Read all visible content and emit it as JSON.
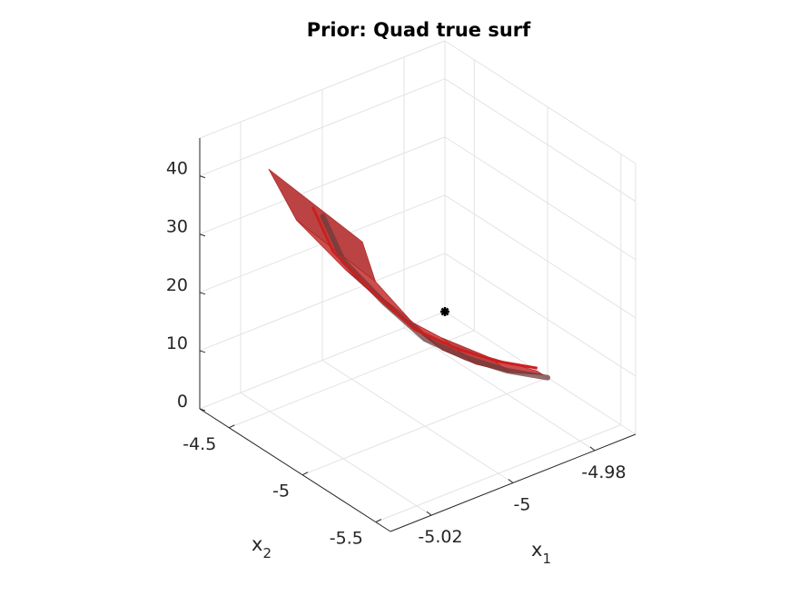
{
  "chart_data": {
    "type": "surface",
    "title": "Prior: Quad true surf",
    "xlabel": "x",
    "xlabel_sub": "1",
    "ylabel": "x",
    "ylabel_sub": "2",
    "zlabel": "",
    "x_ticks": [
      "-5.02",
      "-5",
      "-4.98"
    ],
    "y_ticks": [
      "-4.5",
      "-5",
      "-5.5"
    ],
    "z_ticks": [
      "0",
      "10",
      "20",
      "30",
      "40"
    ],
    "x_range": [
      -5.03,
      -4.97
    ],
    "y_range": [
      -5.6,
      -4.3
    ],
    "z_range": [
      0,
      45
    ],
    "grid": true,
    "view": "3d",
    "surface_color": "#cc1f1f",
    "marker": {
      "x": -4.97,
      "y": -4.3,
      "z": 0,
      "symbol": "asterisk",
      "color": "#000000"
    },
    "surface_profile": [
      {
        "x1": -4.97,
        "z": 0
      },
      {
        "x1": -4.98,
        "z": 4
      },
      {
        "x1": -4.99,
        "z": 9
      },
      {
        "x1": -5.0,
        "z": 15
      },
      {
        "x1": -5.01,
        "z": 24
      },
      {
        "x1": -5.02,
        "z": 34
      },
      {
        "x1": -5.025,
        "z": 43
      }
    ]
  }
}
